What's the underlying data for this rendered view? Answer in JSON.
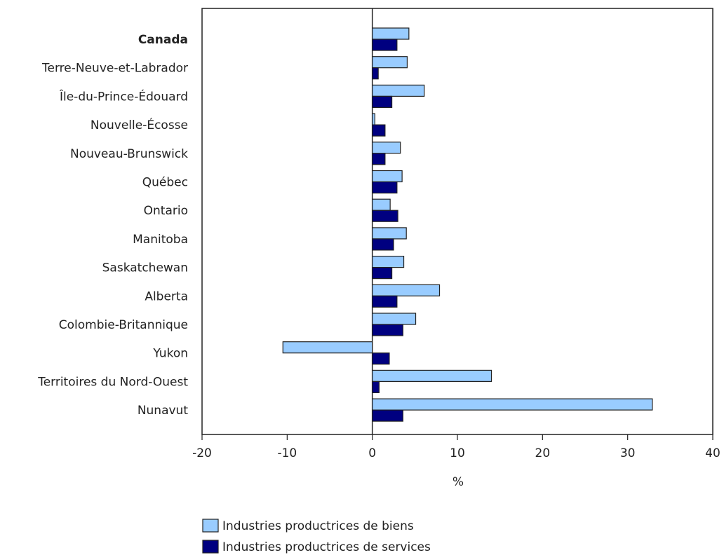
{
  "chart_data": {
    "type": "bar",
    "orientation": "horizontal",
    "categories": [
      "Canada",
      "Terre-Neuve-et-Labrador",
      "Île-du-Prince-Édouard",
      "Nouvelle-Écosse",
      "Nouveau-Brunswick",
      "Québec",
      "Ontario",
      "Manitoba",
      "Saskatchewan",
      "Alberta",
      "Colombie-Britannique",
      "Yukon",
      "Territoires du Nord-Ouest",
      "Nunavut"
    ],
    "bold_categories": [
      "Canada"
    ],
    "series": [
      {
        "name": "Industries productrices de biens",
        "color": "#99ccff",
        "values": [
          4.3,
          4.1,
          6.1,
          0.3,
          3.3,
          3.5,
          2.1,
          4.0,
          3.7,
          7.9,
          5.1,
          -10.5,
          14.0,
          32.9
        ]
      },
      {
        "name": "Industries productrices de services",
        "color": "#000080",
        "values": [
          2.9,
          0.7,
          2.3,
          1.5,
          1.5,
          2.9,
          3.0,
          2.5,
          2.3,
          2.9,
          3.6,
          2.0,
          0.8,
          3.6
        ]
      }
    ],
    "xlim": [
      -20,
      40
    ],
    "xticks": [
      -20,
      -10,
      0,
      10,
      20,
      30,
      40
    ],
    "xlabel": "%",
    "title": "",
    "grid": false,
    "legend_position": "bottom"
  }
}
